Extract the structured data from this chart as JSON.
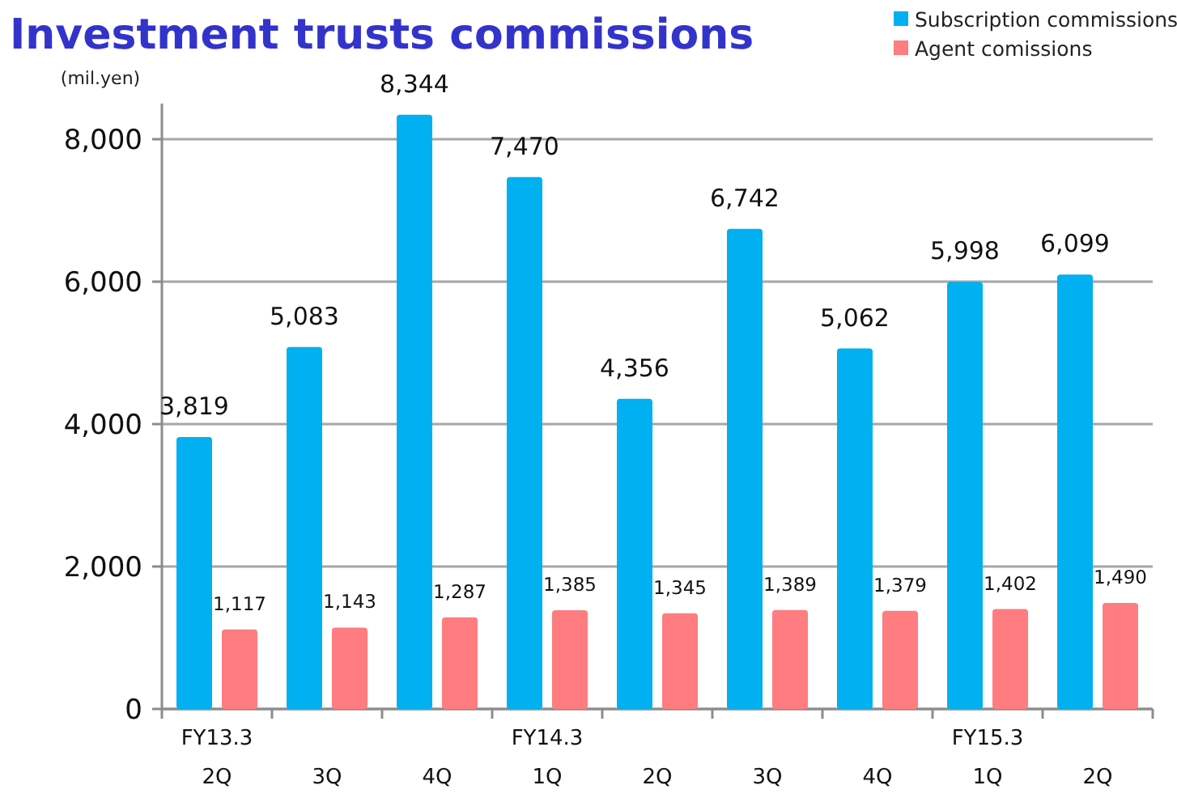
{
  "chart_data": {
    "type": "bar",
    "title": "Investment trusts commissions",
    "ylabel": "(mil.yen)",
    "categories": [
      "FY13.3\n2Q",
      "3Q",
      "4Q",
      "FY14.3\n1Q",
      "2Q",
      "3Q",
      "4Q",
      "FY15.3\n1Q",
      "2Q"
    ],
    "series": [
      {
        "name": "Subscription commissions",
        "color": "#00b0f0",
        "values": [
          3819,
          5083,
          8344,
          7470,
          4356,
          6742,
          5062,
          5998,
          6099
        ],
        "value_labels": [
          "3,819",
          "5,083",
          "8,344",
          "7,470",
          "4,356",
          "6,742",
          "5,062",
          "5,998",
          "6,099"
        ]
      },
      {
        "name": "Agent comissions",
        "color": "#ff7c80",
        "values": [
          1117,
          1143,
          1287,
          1385,
          1345,
          1389,
          1379,
          1402,
          1490
        ],
        "value_labels": [
          "1,117",
          "1,143",
          "1,287",
          "1,385",
          "1,345",
          "1,389",
          "1,379",
          "1,402",
          "1,490"
        ]
      }
    ],
    "ylim": [
      0,
      8500
    ],
    "yticks": [
      {
        "value": 0,
        "label": "0"
      },
      {
        "value": 2000,
        "label": "2,000"
      },
      {
        "value": 4000,
        "label": "4,000"
      },
      {
        "value": 6000,
        "label": "6,000"
      },
      {
        "value": 8000,
        "label": "8,000"
      }
    ],
    "grid": "y",
    "legend": "top right"
  }
}
